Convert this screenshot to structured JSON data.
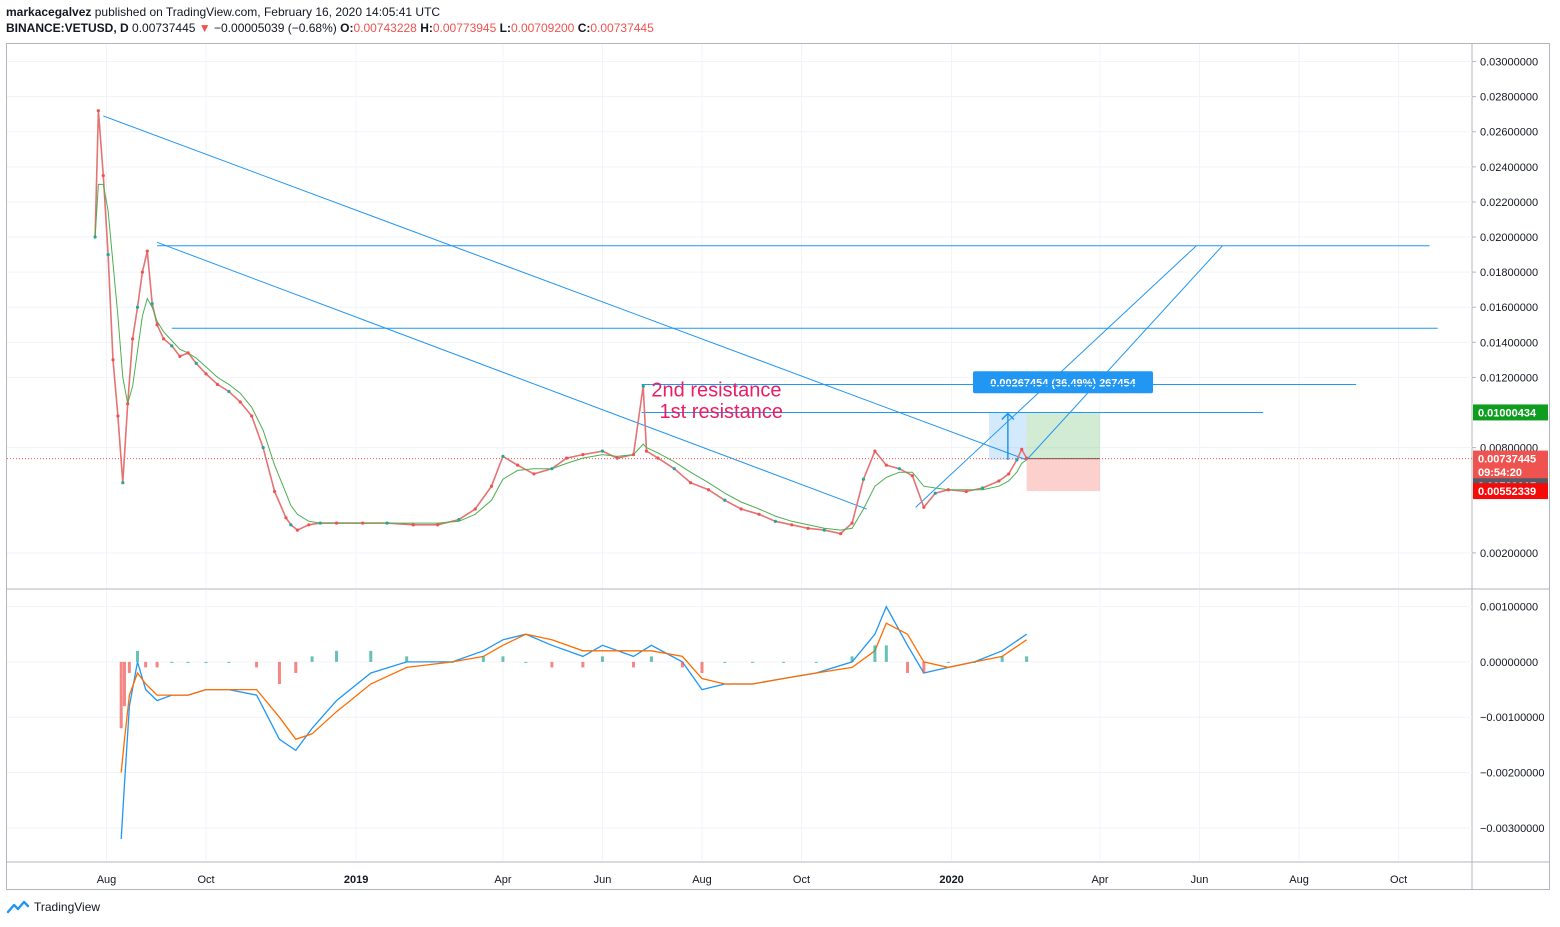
{
  "header": {
    "author": "markacegalvez",
    "published_text": "published on TradingView.com, February 16, 2020 14:05:41 UTC",
    "symbol": "BINANCE:VETUSD, D",
    "last": "0.00737445",
    "arrow": "▼",
    "change": "−0.00005039 (−0.68%)",
    "o_label": "O:",
    "o_value": "0.00743228",
    "h_label": "H:",
    "h_value": "0.00773945",
    "l_label": "L:",
    "l_value": "0.00709200",
    "c_label": "C:",
    "c_value": "0.00737445"
  },
  "footer": {
    "brand": "TradingView"
  },
  "chart_data": [
    {
      "type": "line",
      "title": "",
      "series_name": "VETUSD price",
      "x": [
        "2018-07-25",
        "2018-07-27",
        "2018-07-30",
        "2018-08-02",
        "2018-08-05",
        "2018-08-08",
        "2018-08-11",
        "2018-08-14",
        "2018-08-17",
        "2018-08-20",
        "2018-08-23",
        "2018-08-26",
        "2018-08-29",
        "2018-09-01",
        "2018-09-05",
        "2018-09-10",
        "2018-09-15",
        "2018-09-20",
        "2018-09-25",
        "2018-10-01",
        "2018-10-08",
        "2018-10-15",
        "2018-10-22",
        "2018-10-29",
        "2018-11-05",
        "2018-11-12",
        "2018-11-19",
        "2018-11-22",
        "2018-11-26",
        "2018-12-03",
        "2018-12-10",
        "2018-12-20",
        "2019-01-05",
        "2019-01-20",
        "2019-02-05",
        "2019-02-20",
        "2019-03-05",
        "2019-03-15",
        "2019-03-25",
        "2019-04-01",
        "2019-04-10",
        "2019-04-20",
        "2019-05-01",
        "2019-05-10",
        "2019-05-20",
        "2019-06-01",
        "2019-06-10",
        "2019-06-20",
        "2019-06-26",
        "2019-06-28",
        "2019-07-05",
        "2019-07-15",
        "2019-07-25",
        "2019-08-05",
        "2019-08-15",
        "2019-08-25",
        "2019-09-05",
        "2019-09-15",
        "2019-09-25",
        "2019-10-05",
        "2019-10-15",
        "2019-10-25",
        "2019-11-01",
        "2019-11-08",
        "2019-11-15",
        "2019-11-22",
        "2019-11-30",
        "2019-12-08",
        "2019-12-15",
        "2019-12-22",
        "2019-12-30",
        "2020-01-10",
        "2020-01-20",
        "2020-01-30",
        "2020-02-05",
        "2020-02-10",
        "2020-02-13",
        "2020-02-16"
      ],
      "y": [
        0.02,
        0.0272,
        0.0235,
        0.019,
        0.013,
        0.0098,
        0.006,
        0.0105,
        0.0142,
        0.016,
        0.018,
        0.0192,
        0.0162,
        0.015,
        0.0142,
        0.0138,
        0.0132,
        0.0134,
        0.0128,
        0.0122,
        0.0116,
        0.0112,
        0.0106,
        0.0098,
        0.008,
        0.0055,
        0.004,
        0.0036,
        0.0033,
        0.0036,
        0.0037,
        0.0037,
        0.0037,
        0.0037,
        0.0036,
        0.0036,
        0.0039,
        0.0045,
        0.0058,
        0.0075,
        0.007,
        0.0065,
        0.0068,
        0.0074,
        0.0076,
        0.0078,
        0.0074,
        0.0076,
        0.0115,
        0.0078,
        0.0074,
        0.0068,
        0.006,
        0.0056,
        0.005,
        0.0045,
        0.0042,
        0.0038,
        0.0036,
        0.0034,
        0.0033,
        0.0031,
        0.0037,
        0.0062,
        0.0078,
        0.007,
        0.0068,
        0.0064,
        0.0046,
        0.0054,
        0.0056,
        0.0055,
        0.0057,
        0.0061,
        0.0065,
        0.0073,
        0.0079,
        0.0074
      ],
      "ma_series": [
        0.02,
        0.023,
        0.023,
        0.0215,
        0.0185,
        0.0155,
        0.012,
        0.0105,
        0.0115,
        0.0135,
        0.0155,
        0.0165,
        0.016,
        0.0152,
        0.0146,
        0.0141,
        0.0136,
        0.0134,
        0.0131,
        0.0126,
        0.012,
        0.0116,
        0.0111,
        0.0103,
        0.009,
        0.007,
        0.0054,
        0.0047,
        0.0042,
        0.0038,
        0.0037,
        0.0037,
        0.0037,
        0.0037,
        0.0037,
        0.0037,
        0.0038,
        0.0042,
        0.005,
        0.0062,
        0.0067,
        0.0068,
        0.0068,
        0.0071,
        0.0074,
        0.0076,
        0.0075,
        0.0076,
        0.0082,
        0.008,
        0.0077,
        0.0072,
        0.0066,
        0.006,
        0.0054,
        0.0049,
        0.0045,
        0.0041,
        0.0038,
        0.0036,
        0.0034,
        0.0033,
        0.0034,
        0.0045,
        0.0058,
        0.0063,
        0.0066,
        0.0066,
        0.0058,
        0.0057,
        0.0056,
        0.0056,
        0.0056,
        0.0058,
        0.0061,
        0.0066,
        0.0071,
        0.0073
      ],
      "y_ticks": [
        "0.03000000",
        "0.02800000",
        "0.02600000",
        "0.02400000",
        "0.02200000",
        "0.02000000",
        "0.01800000",
        "0.01600000",
        "0.01400000",
        "0.01200000",
        "0.00800000",
        "0.00200000"
      ],
      "y_tick_values": [
        0.03,
        0.028,
        0.026,
        0.024,
        0.022,
        0.02,
        0.018,
        0.016,
        0.014,
        0.012,
        0.008,
        0.002
      ],
      "ylim": [
        0.0,
        0.031
      ],
      "x_ticks": [
        "Aug",
        "Oct",
        "2019",
        "Apr",
        "Jun",
        "Aug",
        "Oct",
        "2020",
        "Apr",
        "Jun",
        "Aug",
        "Oct"
      ],
      "x_tick_dates": [
        "2018-08-01",
        "2018-10-01",
        "2019-01-01",
        "2019-04-01",
        "2019-06-01",
        "2019-08-01",
        "2019-10-01",
        "2020-01-01",
        "2020-04-01",
        "2020-06-01",
        "2020-08-01",
        "2020-10-01"
      ],
      "x_tick_bold": [
        false,
        false,
        true,
        false,
        false,
        false,
        false,
        true,
        false,
        false,
        false,
        false
      ],
      "x_range": [
        "2018-06-01",
        "2020-11-15"
      ],
      "grid": true,
      "price_tags": [
        {
          "label": "0.01000434",
          "value": 0.01000434,
          "color": "#0f9d1f"
        },
        {
          "label": "0.00737445",
          "value": 0.00737445,
          "color": "#ef5350"
        },
        {
          "label": "09:54:20",
          "value": 0.0066,
          "color": "#ef5350"
        },
        {
          "label": "0.00729017",
          "value": 0.0058,
          "color": "#555a66"
        },
        {
          "label": "0.00552339",
          "value": 0.00552339,
          "color": "#f50a0a"
        }
      ],
      "annotations": [
        {
          "text": "2nd resistance",
          "x": "2019-07-01",
          "y": 0.0109
        },
        {
          "text": "1st resistance",
          "x": "2019-07-06",
          "y": 0.0097
        }
      ],
      "measure_label": "0.00267454 (36.49%) 267454",
      "horizontal_levels": [
        {
          "y": 0.0195,
          "from": "2018-09-01",
          "to": "2020-10-20"
        },
        {
          "y": 0.0148,
          "from": "2018-09-10",
          "to": "2020-10-25"
        },
        {
          "y": 0.0116,
          "from": "2019-06-25",
          "to": "2020-09-05"
        },
        {
          "y": 0.01,
          "from": "2019-06-25",
          "to": "2020-07-10"
        }
      ],
      "trend_lines": [
        {
          "from": [
            "2018-07-30",
            0.0269
          ],
          "to": [
            "2020-02-16",
            0.0073
          ]
        },
        {
          "from": [
            "2018-09-01",
            0.0197
          ],
          "to": [
            "2019-11-10",
            0.0045
          ]
        },
        {
          "from": [
            "2019-12-10",
            0.0046
          ],
          "to": [
            "2020-05-30",
            0.0195
          ]
        },
        {
          "from": [
            "2020-02-16",
            0.0073
          ],
          "to": [
            "2020-06-15",
            0.0195
          ]
        }
      ],
      "position": {
        "entry": 0.00737445,
        "target": 0.01000434,
        "stop": 0.00552339,
        "from": "2020-02-16",
        "to": "2020-04-01"
      }
    },
    {
      "type": "line",
      "title": "",
      "series_name": "MACD",
      "x": [
        "2018-08-10",
        "2018-08-12",
        "2018-08-15",
        "2018-08-20",
        "2018-08-25",
        "2018-09-01",
        "2018-09-10",
        "2018-09-20",
        "2018-10-01",
        "2018-10-15",
        "2018-11-01",
        "2018-11-15",
        "2018-11-25",
        "2018-12-05",
        "2018-12-20",
        "2019-01-10",
        "2019-02-01",
        "2019-03-01",
        "2019-03-20",
        "2019-04-01",
        "2019-04-15",
        "2019-05-01",
        "2019-05-20",
        "2019-06-01",
        "2019-06-20",
        "2019-07-01",
        "2019-07-20",
        "2019-08-01",
        "2019-08-15",
        "2019-09-01",
        "2019-09-20",
        "2019-10-10",
        "2019-11-01",
        "2019-11-15",
        "2019-11-22",
        "2019-12-05",
        "2019-12-15",
        "2019-12-30",
        "2020-01-15",
        "2020-02-01",
        "2020-02-16"
      ],
      "macd": [
        -0.0032,
        -0.0022,
        -0.0008,
        0.0,
        -0.0005,
        -0.0007,
        -0.0006,
        -0.0006,
        -0.0005,
        -0.0005,
        -0.0006,
        -0.0014,
        -0.0016,
        -0.0012,
        -0.0007,
        -0.0002,
        0.0,
        0.0,
        0.0002,
        0.0004,
        0.0005,
        0.0003,
        0.0001,
        0.0003,
        0.0001,
        0.0003,
        0.0,
        -0.0005,
        -0.0004,
        -0.0004,
        -0.0003,
        -0.0002,
        0.0,
        0.0005,
        0.001,
        0.0003,
        -0.0002,
        -0.0001,
        0.0,
        0.0002,
        0.0005
      ],
      "signal": [
        -0.002,
        -0.0014,
        -0.0006,
        -0.0002,
        -0.0004,
        -0.0006,
        -0.0006,
        -0.0006,
        -0.0005,
        -0.0005,
        -0.0005,
        -0.001,
        -0.0014,
        -0.0013,
        -0.0009,
        -0.0004,
        -0.0001,
        0.0,
        0.0001,
        0.0003,
        0.0005,
        0.0004,
        0.0002,
        0.0002,
        0.0002,
        0.0002,
        0.0001,
        -0.0003,
        -0.0004,
        -0.0004,
        -0.0003,
        -0.0002,
        -0.0001,
        0.0002,
        0.0007,
        0.0005,
        0.0,
        -0.0001,
        0.0,
        0.0001,
        0.0004
      ],
      "y_ticks": [
        "0.00100000",
        "0.00000000",
        "−0.00100000",
        "−0.00200000",
        "−0.00300000"
      ],
      "y_tick_values": [
        0.001,
        0.0,
        -0.001,
        -0.002,
        -0.003
      ],
      "ylim": [
        -0.0036,
        0.0013
      ]
    }
  ]
}
